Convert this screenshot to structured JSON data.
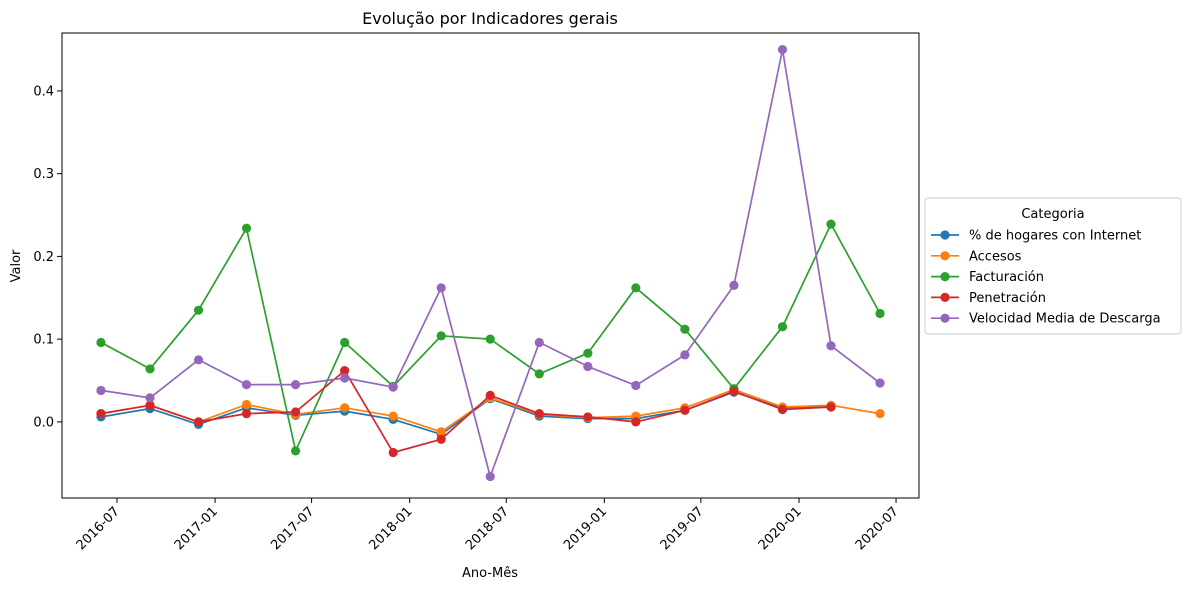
{
  "chart_data": {
    "type": "line",
    "title": "Evolução por Indicadores gerais",
    "xlabel": "Ano-Mês",
    "ylabel": "Valor",
    "x": [
      "2016-06",
      "2016-09",
      "2016-12",
      "2017-03",
      "2017-06",
      "2017-09",
      "2017-12",
      "2018-03",
      "2018-06",
      "2018-09",
      "2018-12",
      "2019-03",
      "2019-06",
      "2019-09",
      "2019-12",
      "2020-03",
      "2020-06"
    ],
    "xticks": [
      "2016-07",
      "2017-01",
      "2017-07",
      "2018-01",
      "2018-07",
      "2019-01",
      "2019-07",
      "2020-01",
      "2020-07"
    ],
    "ylim": [
      -0.092,
      0.47
    ],
    "yticks": [
      "0.0",
      "0.1",
      "0.2",
      "0.3",
      "0.4"
    ],
    "grid": false,
    "legend": {
      "title": "Categoria",
      "placement": "center-right outside"
    },
    "series": [
      {
        "name": "% de hogares con Internet",
        "color": "#1f77b4",
        "values": [
          0.006,
          0.016,
          -0.003,
          0.017,
          0.008,
          0.013,
          0.003,
          -0.015,
          0.028,
          0.007,
          0.004,
          0.004,
          0.014,
          0.036,
          0.017,
          0.019,
          null
        ]
      },
      {
        "name": "Accesos",
        "color": "#ff7f0e",
        "values": [
          0.01,
          0.02,
          0.0,
          0.021,
          0.009,
          0.017,
          0.007,
          -0.012,
          0.029,
          0.009,
          0.005,
          0.007,
          0.017,
          0.039,
          0.018,
          0.02,
          0.01
        ]
      },
      {
        "name": "Facturación",
        "color": "#2ca02c",
        "values": [
          0.096,
          0.064,
          0.135,
          0.234,
          -0.035,
          0.096,
          0.043,
          0.104,
          0.1,
          0.058,
          0.083,
          0.162,
          0.112,
          0.04,
          0.115,
          0.239,
          0.131
        ]
      },
      {
        "name": "Penetración",
        "color": "#d62728",
        "values": [
          0.01,
          0.02,
          0.0,
          0.01,
          0.012,
          0.062,
          -0.037,
          -0.021,
          0.032,
          0.01,
          0.006,
          0.0,
          0.014,
          0.037,
          0.015,
          0.018,
          null
        ]
      },
      {
        "name": "Velocidad Media de Descarga",
        "color": "#9467bd",
        "values": [
          0.038,
          0.029,
          0.075,
          0.045,
          0.045,
          0.053,
          0.042,
          0.162,
          -0.066,
          0.096,
          0.067,
          0.044,
          0.081,
          0.165,
          0.45,
          0.092,
          0.047
        ]
      }
    ]
  }
}
